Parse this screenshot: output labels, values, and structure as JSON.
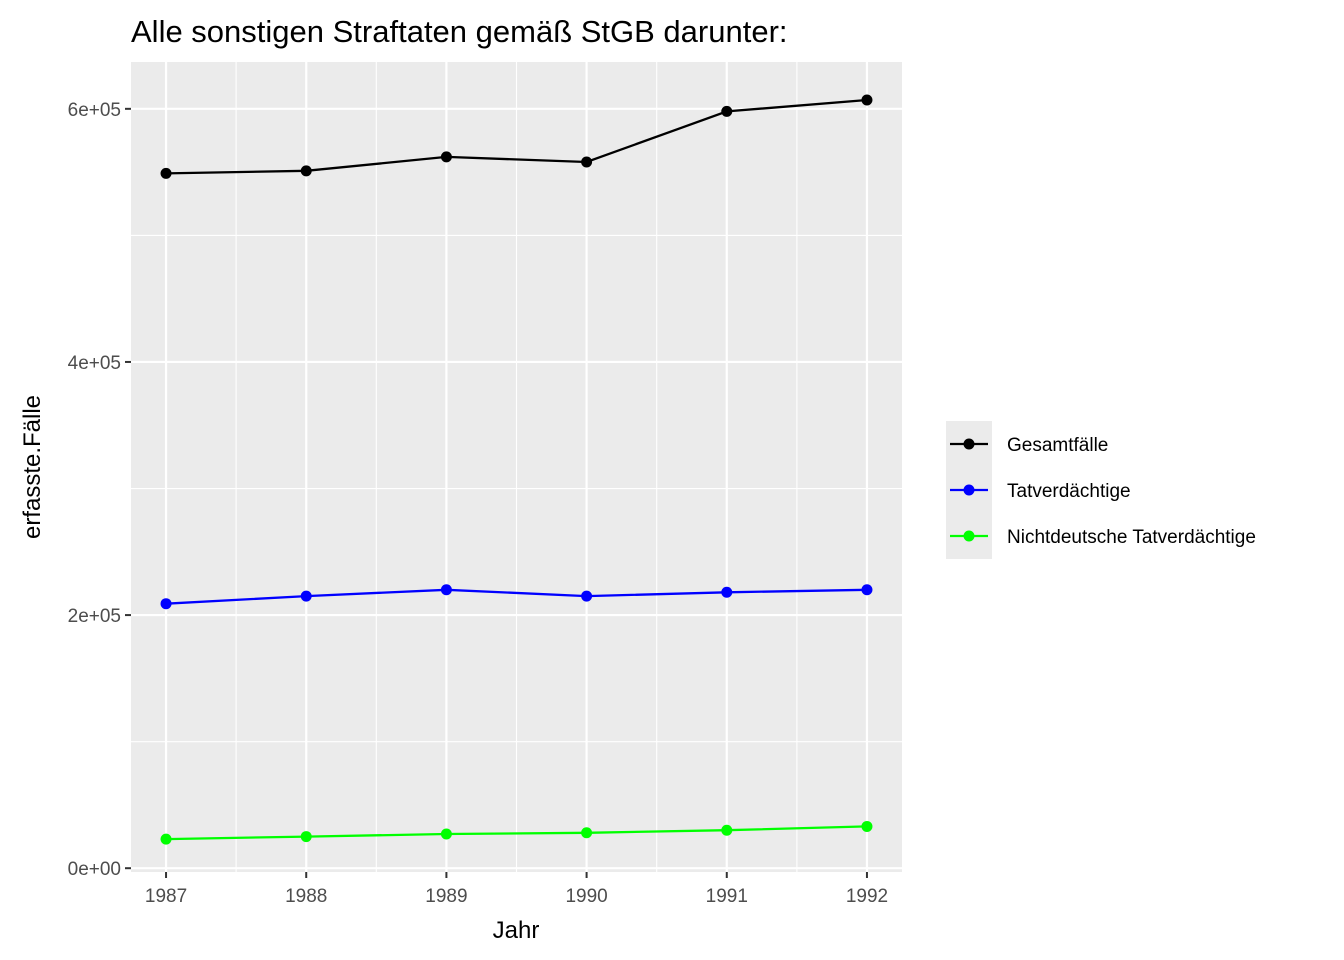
{
  "chart_data": {
    "type": "line",
    "title": "Alle sonstigen Straftaten gemäß StGB darunter:",
    "xlabel": "Jahr",
    "ylabel": "erfasste.Fälle",
    "x": [
      1987,
      1988,
      1989,
      1990,
      1991,
      1992
    ],
    "x_tick_labels": [
      "1987",
      "1988",
      "1989",
      "1990",
      "1991",
      "1992"
    ],
    "xlim": [
      1986.75,
      1992.25
    ],
    "ylim": [
      -3000,
      637000
    ],
    "y_ticks": [
      0,
      200000,
      400000,
      600000
    ],
    "y_tick_labels": [
      "0e+00",
      "2e+05",
      "4e+05",
      "6e+05"
    ],
    "grid": true,
    "legend_position": "right",
    "series": [
      {
        "name": "Gesamtfälle",
        "color": "#000000",
        "values": [
          549000,
          551000,
          562000,
          558000,
          598000,
          607000
        ]
      },
      {
        "name": "Tatverdächtige",
        "color": "#0000ff",
        "values": [
          209000,
          215000,
          220000,
          215000,
          218000,
          220000
        ]
      },
      {
        "name": "Nichtdeutsche Tatverdächtige",
        "color": "#00ff00",
        "values": [
          23000,
          25000,
          27000,
          28000,
          30000,
          33000
        ]
      }
    ]
  }
}
